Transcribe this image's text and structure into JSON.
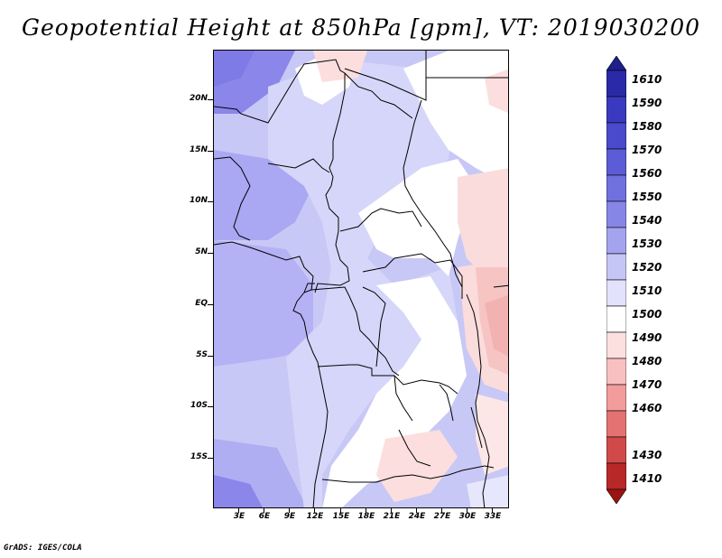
{
  "title": "Geopotential Height at 850hPa [gpm], VT: 2019030200",
  "map": {
    "lat_labels": [
      "20N",
      "15N",
      "10N",
      "5N",
      "EQ",
      "5S",
      "10S",
      "15S"
    ],
    "lon_labels": [
      "3E",
      "6E",
      "9E",
      "12E",
      "15E",
      "18E",
      "21E",
      "24E",
      "27E",
      "30E",
      "33E"
    ]
  },
  "colorbar": {
    "labels": [
      "1610",
      "1590",
      "1580",
      "1570",
      "1560",
      "1550",
      "1540",
      "1530",
      "1520",
      "1510",
      "1500",
      "1490",
      "1480",
      "1470",
      "1460",
      "1430",
      "1410"
    ],
    "colors": [
      "#1e1e8c",
      "#2a2aa8",
      "#3a3ac0",
      "#4a4acc",
      "#5c5cd6",
      "#7070de",
      "#8686e6",
      "#a4a4ee",
      "#c6c6f6",
      "#e2e2fc",
      "#ffffff",
      "#fce0e0",
      "#f8c0c0",
      "#f29c9c",
      "#e47272",
      "#d04a4a",
      "#b82828",
      "#9a1414"
    ]
  },
  "footer": "GrADS: IGES/COLA"
}
